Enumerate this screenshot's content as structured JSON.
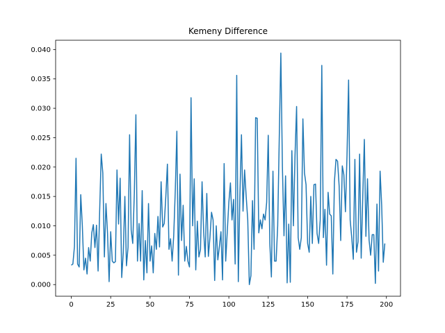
{
  "chart_data": {
    "type": "line",
    "title": "Kemeny Difference",
    "xlabel": "",
    "ylabel": "",
    "xlim": [
      -9.95,
      208.95
    ],
    "ylim": [
      -0.00198,
      0.04158
    ],
    "x_ticks": [
      0,
      25,
      50,
      75,
      100,
      125,
      150,
      175,
      200
    ],
    "x_tick_labels": [
      "0",
      "25",
      "50",
      "75",
      "100",
      "125",
      "150",
      "175",
      "200"
    ],
    "y_ticks": [
      0.0,
      0.005,
      0.01,
      0.015,
      0.02,
      0.025,
      0.03,
      0.035,
      0.04
    ],
    "y_tick_labels": [
      "0.000",
      "0.005",
      "0.010",
      "0.015",
      "0.020",
      "0.025",
      "0.030",
      "0.035",
      "0.040"
    ],
    "grid": false,
    "line_color": "#1f77b4",
    "series": [
      {
        "values": [
          0.0033,
          0.0035,
          0.0065,
          0.0215,
          0.0035,
          0.003,
          0.0153,
          0.01,
          0.0025,
          0.0045,
          0.0018,
          0.0063,
          0.004,
          0.0088,
          0.0102,
          0.0063,
          0.0101,
          0.0023,
          0.0125,
          0.0222,
          0.019,
          0.0047,
          0.0138,
          0.0087,
          0.0005,
          0.009,
          0.004,
          0.0037,
          0.0039,
          0.0195,
          0.0103,
          0.0181,
          0.0012,
          0.0055,
          0.015,
          0.0032,
          0.0063,
          0.0255,
          0.0093,
          0.007,
          0.0155,
          0.0289,
          0.004,
          0.0104,
          0.004,
          0.016,
          0.0008,
          0.0075,
          0.002,
          0.0138,
          0.004,
          0.0066,
          0.002,
          0.0087,
          0.006,
          0.0116,
          0.0064,
          0.0175,
          0.0098,
          0.0104,
          0.015,
          0.0205,
          0.006,
          0.0078,
          0.004,
          0.0083,
          0.016,
          0.0261,
          0.0016,
          0.0188,
          0.0075,
          0.0135,
          0.004,
          0.0065,
          0.004,
          0.003,
          0.0318,
          0.01,
          0.018,
          0.0025,
          0.0108,
          0.0047,
          0.006,
          0.0175,
          0.009,
          0.0047,
          0.0155,
          0.0048,
          0.008,
          0.0123,
          0.011,
          0.0007,
          0.01,
          0.0042,
          0.0065,
          0.009,
          0.0008,
          0.0206,
          0.004,
          0.009,
          0.014,
          0.0173,
          0.011,
          0.0145,
          0.0035,
          0.0356,
          0.0005,
          0.015,
          0.0255,
          0.0125,
          0.0195,
          0.015,
          0.011,
          0.0,
          0.0015,
          0.0143,
          0.006,
          0.0284,
          0.0283,
          0.0088,
          0.011,
          0.0095,
          0.012,
          0.011,
          0.014,
          0.0254,
          0.007,
          0.0013,
          0.0193,
          0.004,
          0.004,
          0.01,
          0.025,
          0.0394,
          0.02,
          0.0083,
          0.0185,
          0.0003,
          0.0103,
          0.0004,
          0.0228,
          0.01,
          0.022,
          0.0303,
          0.008,
          0.006,
          0.008,
          0.0282,
          0.019,
          0.017,
          0.007,
          0.0055,
          0.015,
          0.007,
          0.017,
          0.0171,
          0.0087,
          0.007,
          0.011,
          0.0373,
          0.008,
          0.0128,
          0.0033,
          0.0157,
          0.012,
          0.0117,
          0.0018,
          0.0175,
          0.0213,
          0.021,
          0.0168,
          0.0075,
          0.0202,
          0.0187,
          0.0124,
          0.022,
          0.0348,
          0.011,
          0.008,
          0.0043,
          0.0213,
          0.0055,
          0.0073,
          0.0222,
          0.0045,
          0.015,
          0.0247,
          0.0082,
          0.018,
          0.0076,
          0.005,
          0.0085,
          0.0085,
          0.0002,
          0.0137,
          0.0023,
          0.0193,
          0.0135,
          0.0038,
          0.007
        ]
      }
    ]
  }
}
